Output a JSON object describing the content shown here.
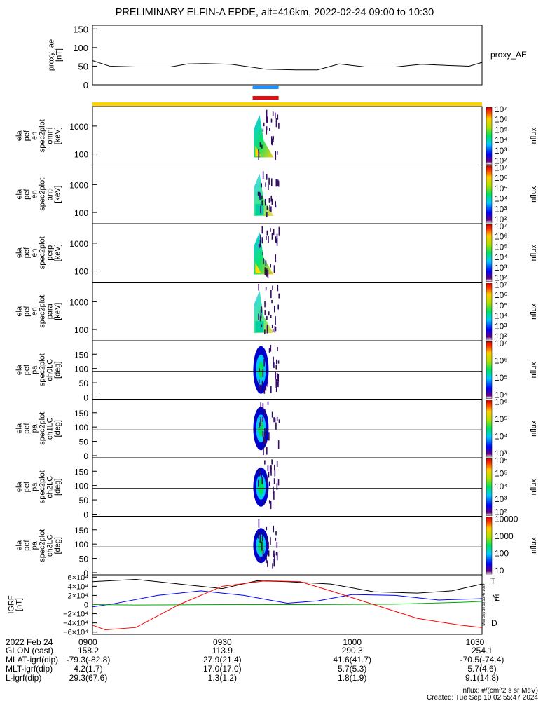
{
  "title": "PRELIMINARY ELFIN-A EPDE, alt=416km, 2022-02-24 09:00 to 10:30",
  "chart_data": {
    "type": "multi-panel spectrogram",
    "x_range_hhmm": [
      "09:00",
      "10:30"
    ],
    "ae_panel": {
      "ylabel": [
        "proxy_ae",
        "[nT]"
      ],
      "yticks": [
        0,
        50,
        100,
        150
      ],
      "ylim": [
        0,
        160
      ],
      "legend": "proxy_AE",
      "series": {
        "x_minutes": [
          0,
          4,
          10,
          18,
          22,
          26,
          32,
          40,
          47,
          52,
          57,
          63,
          70,
          76,
          82,
          87,
          90
        ],
        "values": [
          65,
          50,
          48,
          48,
          56,
          57,
          55,
          42,
          40,
          40,
          56,
          48,
          48,
          55,
          52,
          50,
          60
        ]
      }
    },
    "bars": [
      {
        "color": "#1e90ff",
        "start_min": 37,
        "end_min": 43
      },
      {
        "color": "#dd1111",
        "start_min": 37,
        "end_min": 43
      },
      {
        "color": "#ffd400",
        "start_min": 0,
        "end_min": 90
      }
    ],
    "energy_panels": [
      {
        "ylabel": [
          "ela",
          "pef",
          "en",
          "spec2plot",
          "omni",
          "[keV]"
        ],
        "yticks": [
          "100",
          "1000"
        ],
        "cbar_ticks": [
          "10²",
          "10³",
          "10⁴",
          "10⁵",
          "10⁶",
          "10⁷"
        ],
        "cbar_label": "nflux",
        "intensity": 1.0
      },
      {
        "ylabel": [
          "ela",
          "pef",
          "en",
          "spec2plot",
          "anti",
          "[keV]"
        ],
        "yticks": [
          "100",
          "1000"
        ],
        "cbar_ticks": [
          "10²",
          "10³",
          "10⁴",
          "10⁵",
          "10⁶",
          "10⁷"
        ],
        "cbar_label": "nflux",
        "intensity": 0.4
      },
      {
        "ylabel": [
          "ela",
          "pef",
          "en",
          "spec2plot",
          "perp",
          "[keV]"
        ],
        "yticks": [
          "100",
          "1000"
        ],
        "cbar_ticks": [
          "10²",
          "10³",
          "10⁴",
          "10⁵",
          "10⁶",
          "10⁷"
        ],
        "cbar_label": "nflux",
        "intensity": 1.0
      },
      {
        "ylabel": [
          "ela",
          "pef",
          "en",
          "spec2plot",
          "para",
          "[keV]"
        ],
        "yticks": [
          "100",
          "1000"
        ],
        "cbar_ticks": [
          "10²",
          "10³",
          "10⁴",
          "10⁵",
          "10⁶",
          "10⁷"
        ],
        "cbar_label": "nflux",
        "intensity": 0.4
      }
    ],
    "pa_panels": [
      {
        "ylabel": [
          "ela",
          "pef",
          "pa",
          "spec2plot",
          "ch0LC",
          "[deg]"
        ],
        "yticks": [
          "0",
          "50",
          "100",
          "150"
        ],
        "cbar_ticks": [
          "10⁴",
          "10⁵",
          "10⁶",
          "10⁷"
        ],
        "cbar_label": "nflux"
      },
      {
        "ylabel": [
          "ela",
          "pef",
          "pa",
          "spec2plot",
          "ch1LC",
          "[deg]"
        ],
        "yticks": [
          "0",
          "50",
          "100",
          "150"
        ],
        "cbar_ticks": [
          "10³",
          "10⁴",
          "10⁵",
          "10⁶"
        ],
        "cbar_label": "nflux"
      },
      {
        "ylabel": [
          "ela",
          "pef",
          "pa",
          "spec2plot",
          "ch2LC",
          "[deg]"
        ],
        "yticks": [
          "0",
          "50",
          "100",
          "150"
        ],
        "cbar_ticks": [
          "10²",
          "10³",
          "10⁴",
          "10⁵",
          "10⁶"
        ],
        "cbar_label": "nflux"
      },
      {
        "ylabel": [
          "ela",
          "pef",
          "pa",
          "spec2plot",
          "ch3LC",
          "[deg]"
        ],
        "yticks": [
          "0",
          "50",
          "100",
          "150"
        ],
        "cbar_ticks": [
          "10",
          "100",
          "1000",
          "10000"
        ],
        "cbar_label": "nflux"
      }
    ],
    "igrf_panel": {
      "ylabel": [
        "IGRF",
        "[nT]"
      ],
      "yticks": [
        "−6×10⁴",
        "−4×10⁴",
        "−2×10⁴",
        "0",
        "2×10⁴",
        "4×10⁴",
        "6×10⁴"
      ],
      "ylim": [
        -65000,
        65000
      ],
      "side_stamp": "Mon Sep 10 18:55:47 2024",
      "series": [
        {
          "name": "T",
          "color": "#000000",
          "x_minutes": [
            0,
            10,
            20,
            30,
            38,
            45,
            55,
            65,
            75,
            83,
            90
          ],
          "values": [
            50000,
            55000,
            45000,
            35000,
            52000,
            50000,
            45000,
            28000,
            25000,
            30000,
            45000
          ]
        },
        {
          "name": "N",
          "color": "#0000ff",
          "x_minutes": [
            0,
            5,
            15,
            25,
            35,
            45,
            52,
            60,
            70,
            80,
            90
          ],
          "values": [
            -5000,
            2000,
            20000,
            30000,
            20000,
            3000,
            8000,
            22000,
            20000,
            10000,
            13000
          ]
        },
        {
          "name": "E",
          "color": "#00aa00",
          "x_minutes": [
            0,
            10,
            30,
            50,
            70,
            85,
            90
          ],
          "values": [
            0,
            -1000,
            0,
            0,
            1000,
            5000,
            7000
          ]
        },
        {
          "name": "D",
          "color": "#ff0000",
          "x_minutes": [
            0,
            3,
            10,
            20,
            30,
            40,
            48,
            55,
            65,
            75,
            85,
            90
          ],
          "values": [
            -45000,
            -55000,
            -50000,
            0,
            40000,
            52000,
            50000,
            30000,
            0,
            -30000,
            -45000,
            -50000
          ]
        }
      ]
    },
    "ephemeris": {
      "date": "2022 Feb 24",
      "x_ticks": [
        "0900",
        "0930",
        "1000",
        "1030"
      ],
      "rows": [
        {
          "label": "GLON (east)",
          "values": [
            "158.2",
            "113.9",
            "290.3",
            "254.1"
          ]
        },
        {
          "label": "MLAT-igrf(dip)",
          "values": [
            "-79.3(-82.8)",
            "27.9(21.4)",
            "41.6(41.7)",
            "-70.5(-74.4)"
          ]
        },
        {
          "label": "MLT-igrf(dip)",
          "values": [
            "4.2(1.7)",
            "17.0(17.0)",
            "5.7(5.3)",
            "5.7(4.6)"
          ]
        },
        {
          "label": "L-igrf(dip)",
          "values": [
            "29.3(67.6)",
            "1.3(1.2)",
            "1.8(1.9)",
            "9.1(14.8)"
          ]
        }
      ]
    },
    "footer": {
      "units": "nflux: #/(cm^2 s sr MeV)",
      "created": "Created: Tue Sep 10 02:55:47 2024"
    }
  }
}
